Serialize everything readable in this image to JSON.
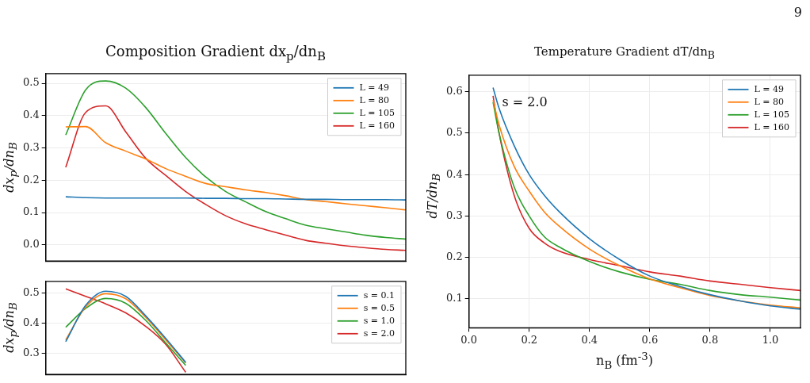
{
  "chart_data": [
    {
      "type": "line",
      "title": "Composition Gradient dx$_{p}$/dn$_{B}$",
      "ylabel": "dx$_{p}$/dn$_{B}$",
      "categories": [
        null,
        null,
        null,
        null,
        null,
        null,
        null,
        null,
        null,
        null,
        null,
        null,
        null,
        null,
        null,
        null,
        null,
        null,
        null
      ],
      "ylim": [
        -0.05,
        0.53
      ],
      "yticks": [
        {
          "value": 0,
          "label": "0.0"
        },
        0.1,
        0.2,
        0.3,
        0.4,
        0.5
      ],
      "tick_labels": "y",
      "grid": "y",
      "legend": "top right",
      "series": [
        {
          "name": "L = 49",
          "color": "#1f77b4",
          "values": [
            null,
            0.149,
            0.146,
            0.145,
            0.145,
            0.145,
            0.145,
            0.145,
            0.144,
            0.144,
            0.143,
            0.143,
            0.142,
            0.141,
            0.141,
            0.14,
            0.14,
            0.14,
            0.139
          ]
        },
        {
          "name": "L = 80",
          "color": "#ff7f0e",
          "values": [
            null,
            0.365,
            0.366,
            0.316,
            0.29,
            0.266,
            0.236,
            0.212,
            0.19,
            0.18,
            0.17,
            0.162,
            0.152,
            0.14,
            0.134,
            0.127,
            0.121,
            0.115,
            0.108
          ]
        },
        {
          "name": "L = 105",
          "color": "#2ca02c",
          "values": [
            null,
            0.34,
            0.48,
            0.507,
            0.485,
            0.425,
            0.345,
            0.27,
            0.21,
            0.165,
            0.133,
            0.103,
            0.081,
            0.061,
            0.05,
            0.04,
            0.03,
            0.023,
            0.018
          ]
        },
        {
          "name": "L = 160",
          "color": "#d62728",
          "values": [
            null,
            0.24,
            0.41,
            0.43,
            0.35,
            0.268,
            0.215,
            0.165,
            0.125,
            0.09,
            0.065,
            0.047,
            0.03,
            0.014,
            0.005,
            -0.003,
            -0.009,
            -0.014,
            -0.017
          ]
        }
      ]
    },
    {
      "type": "line",
      "ylabel": "dx$_{p}$/dn$_{B}$",
      "categories": [
        null,
        null,
        null,
        null,
        null,
        null,
        null,
        null,
        null,
        null,
        null,
        null,
        null,
        null,
        null,
        null,
        null,
        null,
        null
      ],
      "ylim": [
        0.23,
        0.54
      ],
      "yticks": [
        0.3,
        0.4,
        0.5
      ],
      "tick_labels": "y",
      "grid": "y",
      "legend": "top right",
      "series": [
        {
          "name": "s = 0.1",
          "color": "#1f77b4",
          "values": [
            null,
            0.339,
            0.46,
            0.507,
            0.49,
            0.425,
            0.35,
            0.27,
            null,
            null,
            null,
            null,
            null,
            null,
            null,
            null,
            null,
            null,
            null
          ]
        },
        {
          "name": "s = 0.5",
          "color": "#ff7f0e",
          "values": [
            null,
            0.345,
            0.455,
            0.499,
            0.482,
            0.42,
            0.345,
            0.268,
            null,
            null,
            null,
            null,
            null,
            null,
            null,
            null,
            null,
            null,
            null
          ]
        },
        {
          "name": "s = 1.0",
          "color": "#2ca02c",
          "values": [
            null,
            0.387,
            0.45,
            0.483,
            0.467,
            0.41,
            0.335,
            0.26,
            null,
            null,
            null,
            null,
            null,
            null,
            null,
            null,
            null,
            null,
            null
          ]
        },
        {
          "name": "s = 2.0",
          "color": "#d62728",
          "values": [
            null,
            0.515,
            0.49,
            0.465,
            0.435,
            0.39,
            0.33,
            0.237,
            null,
            null,
            null,
            null,
            null,
            null,
            null,
            null,
            null,
            null,
            null
          ]
        }
      ]
    },
    {
      "type": "line",
      "title": "Temperature Gradient dT/dn$_{B}$",
      "xlabel": "n$_{B}$ (fm$^{-3}$)",
      "ylabel": "dT/dn$_{B}$",
      "annotations": [
        "s = 2.0",
        "9"
      ],
      "xlim": [
        0,
        1.1
      ],
      "xticks": [
        {
          "value": 0,
          "label": "0.0"
        },
        0.2,
        0.4,
        0.6,
        0.8,
        {
          "value": 1,
          "label": "1.0"
        }
      ],
      "ylim": [
        0.03,
        0.64
      ],
      "yticks": [
        0.1,
        0.2,
        0.3,
        0.4,
        0.5,
        0.6
      ],
      "grid": true,
      "legend": "top right",
      "x": [
        0.08,
        0.1,
        0.15,
        0.2,
        0.25,
        0.3,
        0.4,
        0.5,
        0.6,
        0.7,
        0.8,
        0.9,
        1.0,
        1.1
      ],
      "series": [
        {
          "name": "L = 49",
          "color": "#1f77b4",
          "values": [
            0.61,
            0.56,
            0.47,
            0.4,
            0.35,
            0.31,
            0.245,
            0.195,
            0.155,
            0.13,
            0.11,
            0.095,
            0.083,
            0.075
          ]
        },
        {
          "name": "L = 80",
          "color": "#ff7f0e",
          "values": [
            0.58,
            0.52,
            0.42,
            0.36,
            0.31,
            0.275,
            0.22,
            0.18,
            0.148,
            0.127,
            0.108,
            0.095,
            0.085,
            0.078
          ]
        },
        {
          "name": "L = 105",
          "color": "#2ca02c",
          "values": [
            0.575,
            0.5,
            0.37,
            0.3,
            0.25,
            0.225,
            0.19,
            0.165,
            0.147,
            0.135,
            0.12,
            0.11,
            0.104,
            0.097
          ]
        },
        {
          "name": "L = 160",
          "color": "#d62728",
          "values": [
            0.59,
            0.5,
            0.35,
            0.27,
            0.235,
            0.215,
            0.195,
            0.18,
            0.165,
            0.155,
            0.143,
            0.135,
            0.127,
            0.12
          ]
        }
      ]
    }
  ]
}
